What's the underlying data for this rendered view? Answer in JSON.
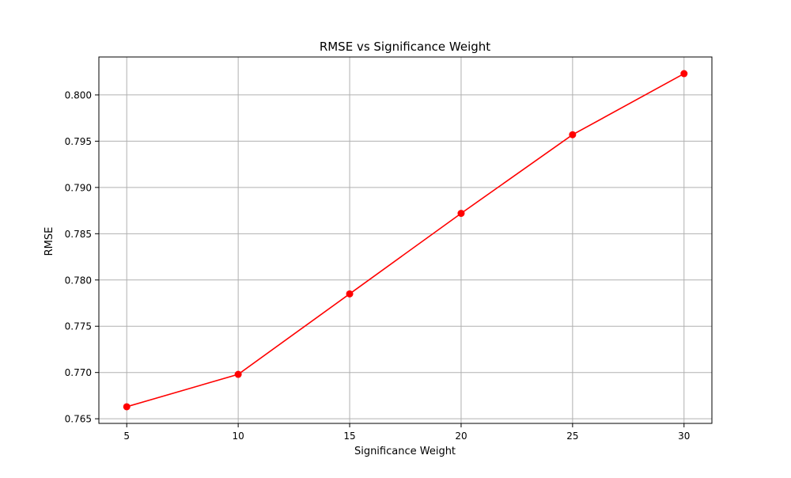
{
  "chart_data": {
    "type": "line",
    "title": "RMSE vs Significance Weight",
    "xlabel": "Significance Weight",
    "ylabel": "RMSE",
    "x": [
      5,
      10,
      15,
      20,
      25,
      30
    ],
    "series": [
      {
        "values": [
          0.7663,
          0.7698,
          0.7785,
          0.7872,
          0.7957,
          0.8023
        ],
        "color": "#ff0000",
        "marker": "circle"
      }
    ],
    "xticks": [
      5,
      10,
      15,
      20,
      25,
      30
    ],
    "xtick_labels": [
      "5",
      "10",
      "15",
      "20",
      "25",
      "30"
    ],
    "yticks": [
      0.765,
      0.77,
      0.775,
      0.78,
      0.785,
      0.79,
      0.795,
      0.8
    ],
    "ytick_labels": [
      "0.765",
      "0.770",
      "0.775",
      "0.780",
      "0.785",
      "0.790",
      "0.795",
      "0.800"
    ],
    "xlim": [
      3.75,
      31.25
    ],
    "ylim": [
      0.7645,
      0.8041
    ],
    "grid": true
  }
}
